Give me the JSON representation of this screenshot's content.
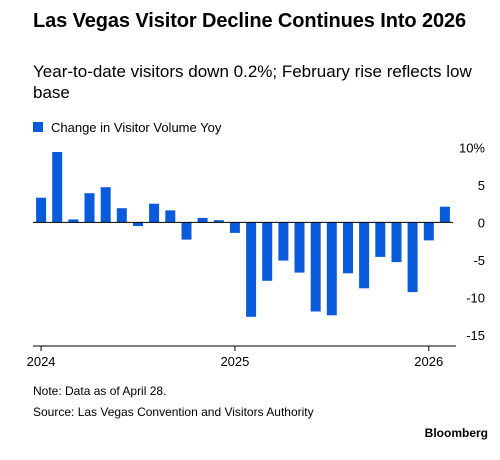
{
  "header": {
    "title": "Las Vegas Visitor Decline Continues Into 2026",
    "subtitle": "Year-to-date visitors down 0.2%; February rise reflects low base"
  },
  "legend": {
    "label": "Change in Visitor Volume Yoy",
    "color": "#0a5bdb"
  },
  "footer": {
    "note": "Note: Data as of April 28.",
    "source": "Source: Las Vegas Convention and Visitors Authority",
    "brand": "Bloomberg"
  },
  "chart_data": {
    "type": "bar",
    "title": "Las Vegas Visitor Decline Continues Into 2026",
    "subtitle": "Year-to-date visitors down 0.2%; February rise reflects low base",
    "categories": [
      "2024-01",
      "2024-02",
      "2024-03",
      "2024-04",
      "2024-05",
      "2024-06",
      "2024-07",
      "2024-08",
      "2024-09",
      "2024-10",
      "2024-11",
      "2024-12",
      "2025-01",
      "2025-02",
      "2025-03",
      "2025-04",
      "2025-05",
      "2025-06",
      "2025-07",
      "2025-08",
      "2025-09",
      "2025-10",
      "2025-11",
      "2025-12",
      "2026-01",
      "2026-02"
    ],
    "series": [
      {
        "name": "Change in Visitor Volume Yoy",
        "color": "#0a5bdb",
        "values": [
          3.3,
          9.4,
          0.4,
          3.9,
          4.7,
          1.9,
          -0.5,
          2.5,
          1.6,
          -2.3,
          0.6,
          0.3,
          -1.4,
          -12.6,
          -7.8,
          -5.1,
          -6.7,
          -11.9,
          -12.4,
          -6.8,
          -8.8,
          -4.6,
          -5.3,
          -9.3,
          -2.4,
          2.1
        ]
      }
    ],
    "yaxis": {
      "ticks": [
        10,
        5,
        0,
        -5,
        -10,
        -15
      ],
      "tick_labels": [
        "10%",
        "5",
        "0",
        "-5",
        "-10",
        "-15"
      ],
      "position": "right"
    },
    "ylim": [
      -16.5,
      11
    ],
    "xaxis": {
      "ticks": [
        "2024",
        "2025",
        "2026"
      ]
    },
    "grid": false,
    "legend_position": "top-left"
  }
}
